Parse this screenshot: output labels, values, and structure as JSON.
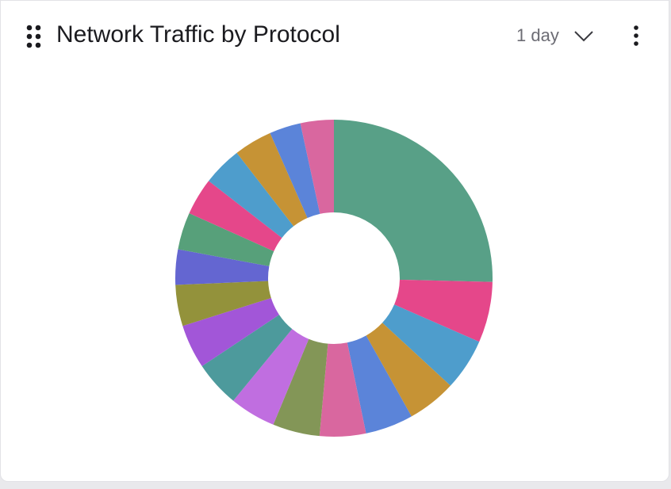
{
  "chart_data": {
    "type": "donut",
    "title": "Network Traffic by Protocol",
    "period": "1 day",
    "values": [
      25.4,
      6.2,
      5.3,
      5.0,
      4.9,
      4.7,
      4.8,
      4.7,
      4.7,
      4.5,
      4.2,
      3.6,
      3.8,
      3.8,
      4.0,
      3.9,
      3.2,
      3.4
    ],
    "colors": [
      "#58a087",
      "#e5478a",
      "#4e9dcc",
      "#c69335",
      "#5b84d9",
      "#d9679f",
      "#839657",
      "#c06ee0",
      "#4d9a9c",
      "#a256d8",
      "#93923b",
      "#6466d1",
      "#57a07a",
      "#e5478a",
      "#4e9dcc",
      "#c69335",
      "#5b84d9",
      "#d9679f"
    ]
  }
}
